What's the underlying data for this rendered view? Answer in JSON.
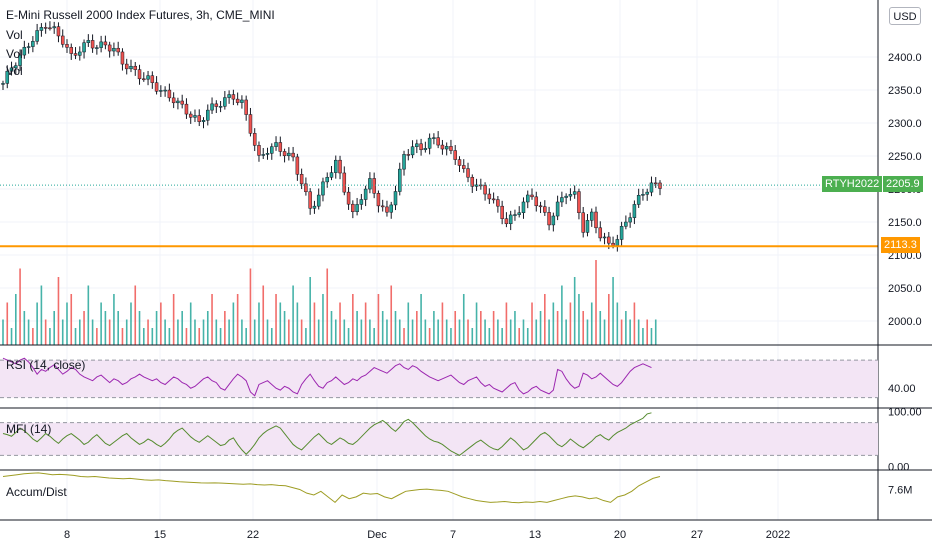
{
  "header": {
    "symbol_title": "E-Mini Russell 2000 Index Futures, 3h, CME_MINI",
    "indicator_labels": [
      "Vol",
      "Vol",
      "Vol"
    ],
    "currency": "USD"
  },
  "price_badges": {
    "ticker": "RTYH2022",
    "last_price": "2205.9",
    "hline_price": "2113.3"
  },
  "colors": {
    "up": "#26a69a",
    "down": "#ef5350",
    "badge_green": "#4caf50",
    "hline": "#ff9800",
    "rsi_line": "#9c27b0",
    "rsi_band": "#f3e5f5",
    "mfi_line": "#558b2f",
    "ad_line": "#9e9d24",
    "pane_border": "#131722",
    "grid": "#f0f3fa"
  },
  "chart_data": [
    {
      "type": "candlestick",
      "title": "E-Mini Russell 2000 Index Futures, 3h, CME_MINI",
      "x_tick_labels": [
        "8",
        "15",
        "22",
        "Dec",
        "7",
        "13",
        "20",
        "27",
        "2022"
      ],
      "y_ticks": [
        "2400.0",
        "2350.0",
        "2300.0",
        "2250.0",
        "2200.0",
        "2150.0",
        "2100.0",
        "2050.0",
        "2000.0"
      ],
      "ylim": [
        1960,
        2470
      ],
      "horizontal_line": 2113.3,
      "last_close": 2205.9,
      "close_path": [
        [
          0,
          2360
        ],
        [
          2,
          2385
        ],
        [
          4,
          2400
        ],
        [
          6,
          2420
        ],
        [
          8,
          2435
        ],
        [
          10,
          2450
        ],
        [
          12,
          2440
        ],
        [
          14,
          2425
        ],
        [
          16,
          2400
        ],
        [
          18,
          2412
        ],
        [
          20,
          2422
        ],
        [
          22,
          2416
        ],
        [
          24,
          2418
        ],
        [
          26,
          2412
        ],
        [
          28,
          2392
        ],
        [
          30,
          2382
        ],
        [
          32,
          2372
        ],
        [
          34,
          2366
        ],
        [
          36,
          2354
        ],
        [
          38,
          2344
        ],
        [
          40,
          2336
        ],
        [
          42,
          2324
        ],
        [
          44,
          2312
        ],
        [
          46,
          2300
        ],
        [
          48,
          2320
        ],
        [
          50,
          2326
        ],
        [
          52,
          2336
        ],
        [
          54,
          2340
        ],
        [
          56,
          2330
        ],
        [
          58,
          2290
        ],
        [
          60,
          2245
        ],
        [
          62,
          2260
        ],
        [
          64,
          2265
        ],
        [
          66,
          2255
        ],
        [
          68,
          2245
        ],
        [
          70,
          2210
        ],
        [
          72,
          2170
        ],
        [
          74,
          2190
        ],
        [
          76,
          2220
        ],
        [
          78,
          2240
        ],
        [
          80,
          2200
        ],
        [
          82,
          2160
        ],
        [
          84,
          2190
        ],
        [
          86,
          2210
        ],
        [
          88,
          2180
        ],
        [
          90,
          2160
        ],
        [
          92,
          2200
        ],
        [
          94,
          2250
        ],
        [
          96,
          2265
        ],
        [
          98,
          2260
        ],
        [
          100,
          2275
        ],
        [
          102,
          2270
        ],
        [
          104,
          2260
        ],
        [
          106,
          2250
        ],
        [
          108,
          2225
        ],
        [
          110,
          2210
        ],
        [
          112,
          2200
        ],
        [
          114,
          2190
        ],
        [
          116,
          2170
        ],
        [
          118,
          2150
        ],
        [
          120,
          2160
        ],
        [
          122,
          2180
        ],
        [
          124,
          2190
        ],
        [
          126,
          2170
        ],
        [
          128,
          2150
        ],
        [
          130,
          2175
        ],
        [
          132,
          2195
        ],
        [
          134,
          2190
        ],
        [
          136,
          2140
        ],
        [
          138,
          2160
        ],
        [
          140,
          2130
        ],
        [
          142,
          2115
        ],
        [
          144,
          2125
        ],
        [
          146,
          2150
        ],
        [
          148,
          2175
        ],
        [
          150,
          2195
        ],
        [
          152,
          2205
        ],
        [
          154,
          2206
        ]
      ],
      "bars_total": 154
    },
    {
      "type": "bar",
      "name": "Vol",
      "series": [
        {
          "values_relative": [
            0.3,
            0.5,
            0.2,
            0.6,
            0.9,
            0.4,
            0.3,
            0.2,
            0.5,
            0.7,
            0.3,
            0.2,
            0.4,
            0.8,
            0.3,
            0.5,
            0.6,
            0.2,
            0.3,
            0.4,
            0.7,
            0.3,
            0.2,
            0.5,
            0.4,
            0.3,
            0.6,
            0.4,
            0.2,
            0.3,
            0.5,
            0.7,
            0.4,
            0.2,
            0.3,
            0.2,
            0.4,
            0.5,
            0.3,
            0.2,
            0.6,
            0.3,
            0.4,
            0.2,
            0.5,
            0.3,
            0.2,
            0.3,
            0.4,
            0.6,
            0.3,
            0.2,
            0.4,
            0.3,
            0.5,
            0.6,
            0.3,
            0.2,
            0.9,
            0.3,
            0.5,
            0.7,
            0.3,
            0.2,
            0.6,
            0.5,
            0.4,
            0.3,
            0.7,
            0.5,
            0.3,
            0.2,
            0.8,
            0.5,
            0.3,
            0.6,
            0.9,
            0.4,
            0.3,
            0.5,
            0.3,
            0.2,
            0.6,
            0.4,
            0.3,
            0.5,
            0.3,
            0.2,
            0.6,
            0.4,
            0.3,
            0.7,
            0.4,
            0.3,
            0.2,
            0.5,
            0.3,
            0.4,
            0.6,
            0.3,
            0.2,
            0.4,
            0.3,
            0.5,
            0.3,
            0.2,
            0.4,
            0.3,
            0.6,
            0.3,
            0.2,
            0.5,
            0.4,
            0.3,
            0.2,
            0.4,
            0.3,
            0.2,
            0.5,
            0.3,
            0.4,
            0.2,
            0.3,
            0.2,
            0.5,
            0.3,
            0.4,
            0.6,
            0.3,
            0.5,
            0.4,
            0.7,
            0.3,
            0.5,
            0.8,
            0.6,
            0.4,
            0.3,
            0.5,
            1.0,
            0.4,
            0.3,
            0.6,
            0.8,
            0.5,
            0.3,
            0.4,
            0.3,
            0.5,
            0.3,
            0.2,
            0.3,
            0.2,
            0.3
          ]
        }
      ]
    },
    {
      "type": "line",
      "name": "RSI (14, close)",
      "y_tick": "40.00",
      "band": [
        30,
        70
      ],
      "ylim": [
        20,
        85
      ],
      "values": [
        72,
        70,
        68,
        66,
        70,
        72,
        68,
        62,
        55,
        60,
        58,
        62,
        65,
        60,
        55,
        58,
        62,
        60,
        55,
        52,
        50,
        48,
        52,
        54,
        50,
        46,
        50,
        48,
        44,
        46,
        50,
        52,
        55,
        52,
        50,
        48,
        50,
        46,
        44,
        48,
        52,
        50,
        46,
        44,
        40,
        42,
        46,
        50,
        52,
        48,
        46,
        40,
        38,
        44,
        50,
        55,
        52,
        48,
        36,
        32,
        44,
        46,
        48,
        44,
        40,
        38,
        42,
        40,
        36,
        34,
        44,
        50,
        55,
        48,
        42,
        40,
        46,
        48,
        52,
        48,
        44,
        46,
        50,
        48,
        52,
        54,
        58,
        62,
        60,
        58,
        56,
        60,
        64,
        66,
        62,
        60,
        64,
        62,
        58,
        55,
        52,
        50,
        48,
        50,
        52,
        54,
        50,
        46,
        44,
        48,
        50,
        52,
        46,
        42,
        44,
        40,
        38,
        36,
        40,
        44,
        46,
        38,
        34,
        36,
        40,
        42,
        38,
        36,
        34,
        38,
        60,
        58,
        50,
        44,
        40,
        42,
        56,
        54,
        50,
        52,
        56,
        52,
        48,
        44,
        42,
        46,
        52,
        58,
        62,
        64,
        66,
        64,
        62
      ]
    },
    {
      "type": "line",
      "name": "MFI (14)",
      "y_ticks": [
        "100.00",
        "0.00"
      ],
      "band": [
        20,
        80
      ],
      "ylim": [
        -5,
        105
      ],
      "values": [
        60,
        58,
        55,
        62,
        70,
        65,
        58,
        50,
        45,
        52,
        60,
        55,
        48,
        42,
        50,
        56,
        60,
        54,
        48,
        40,
        44,
        52,
        58,
        50,
        42,
        38,
        44,
        50,
        56,
        60,
        52,
        46,
        40,
        44,
        50,
        46,
        40,
        36,
        42,
        50,
        60,
        66,
        70,
        62,
        54,
        48,
        44,
        50,
        56,
        50,
        44,
        38,
        40,
        48,
        52,
        40,
        30,
        22,
        30,
        40,
        52,
        60,
        66,
        70,
        74,
        70,
        60,
        50,
        40,
        34,
        30,
        38,
        46,
        54,
        60,
        52,
        44,
        40,
        46,
        52,
        48,
        42,
        40,
        46,
        54,
        62,
        70,
        76,
        80,
        84,
        78,
        70,
        64,
        72,
        82,
        86,
        80,
        72,
        64,
        56,
        50,
        46,
        44,
        40,
        34,
        28,
        24,
        20,
        26,
        32,
        38,
        44,
        48,
        42,
        36,
        32,
        30,
        36,
        44,
        52,
        46,
        38,
        30,
        34,
        42,
        50,
        58,
        62,
        56,
        48,
        40,
        36,
        42,
        50,
        44,
        38,
        34,
        40,
        46,
        54,
        58,
        52,
        48,
        56,
        62,
        66,
        70,
        76,
        80,
        84,
        88,
        96,
        98
      ]
    },
    {
      "type": "line",
      "name": "Accum/Dist",
      "y_tick": "7.6M",
      "ylim": [
        6.0,
        8.6
      ],
      "values": [
        8.3,
        8.35,
        8.4,
        8.45,
        8.48,
        8.5,
        8.45,
        8.4,
        8.42,
        8.4,
        8.36,
        8.3,
        8.28,
        8.3,
        8.26,
        8.22,
        8.2,
        8.18,
        8.2,
        8.16,
        8.12,
        8.1,
        8.12,
        8.08,
        8.05,
        8.02,
        8.0,
        7.98,
        7.96,
        7.95,
        7.96,
        7.94,
        7.92,
        7.9,
        7.88,
        7.9,
        7.86,
        7.84,
        7.86,
        7.82,
        7.8,
        7.7,
        7.6,
        7.4,
        7.3,
        7.5,
        7.2,
        6.9,
        7.3,
        7.1,
        7.2,
        7.4,
        7.35,
        7.38,
        7.2,
        7.1,
        7.3,
        7.5,
        7.55,
        7.6,
        7.62,
        7.58,
        7.55,
        7.5,
        7.35,
        7.2,
        7.1,
        7.0,
        6.95,
        6.9,
        6.92,
        6.95,
        6.9,
        6.88,
        6.92,
        6.9,
        6.95,
        6.9,
        7.0,
        7.1,
        7.2,
        7.25,
        7.2,
        7.1,
        7.15,
        7.0,
        6.9,
        7.2,
        7.3,
        7.5,
        7.8,
        8.0,
        8.2,
        8.3
      ]
    }
  ]
}
